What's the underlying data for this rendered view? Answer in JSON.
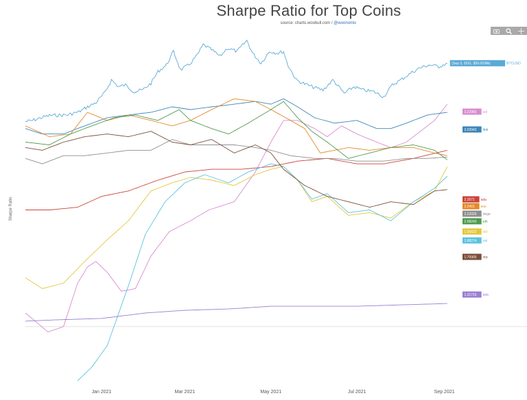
{
  "header": {
    "title": "Sharpe Ratio for Top Coins",
    "source_prefix": "source: charts.woobull.com / ",
    "source_handle": "@woonomic"
  },
  "toolbar": {
    "icons": [
      "camera-icon",
      "zoom-icon",
      "crosshair-icon"
    ]
  },
  "chart_data": {
    "type": "line",
    "title": "Sharpe Ratio for Top Coins",
    "ylabel": "Sharpe Ratio",
    "x_ticks": [
      "Jan 2021",
      "Mar 2021",
      "May 2021",
      "Jul 2021",
      "Sep 2021"
    ],
    "x_range": [
      "2020-11-08",
      "2021-09-25"
    ],
    "ylim": [
      -2.0,
      8.0
    ],
    "zero_line": true,
    "btc_price": {
      "name": "BTCUSD",
      "color": "#5aa9d6",
      "label": "(Sep 3, 2021, $50.0039k)",
      "points": [
        [
          "2020-11-08",
          15.2
        ],
        [
          "2020-11-13",
          15.8
        ],
        [
          "2020-11-19",
          17.5
        ],
        [
          "2020-11-25",
          18.8
        ],
        [
          "2020-12-02",
          19.0
        ],
        [
          "2020-12-08",
          19.2
        ],
        [
          "2020-12-16",
          21.0
        ],
        [
          "2020-12-21",
          23.5
        ],
        [
          "2020-12-28",
          26.5
        ],
        [
          "2021-01-03",
          32
        ],
        [
          "2021-01-08",
          40
        ],
        [
          "2021-01-13",
          36
        ],
        [
          "2021-01-18",
          37
        ],
        [
          "2021-01-24",
          33
        ],
        [
          "2021-01-30",
          34
        ],
        [
          "2021-02-05",
          38
        ],
        [
          "2021-02-10",
          45
        ],
        [
          "2021-02-16",
          49
        ],
        [
          "2021-02-21",
          57
        ],
        [
          "2021-02-26",
          46
        ],
        [
          "2021-03-04",
          49
        ],
        [
          "2021-03-10",
          55
        ],
        [
          "2021-03-14",
          61
        ],
        [
          "2021-03-20",
          58
        ],
        [
          "2021-03-26",
          54
        ],
        [
          "2021-03-31",
          59
        ],
        [
          "2021-04-07",
          57
        ],
        [
          "2021-04-14",
          63.5
        ],
        [
          "2021-04-18",
          56
        ],
        [
          "2021-04-24",
          50
        ],
        [
          "2021-04-30",
          57
        ],
        [
          "2021-05-06",
          56
        ],
        [
          "2021-05-10",
          57
        ],
        [
          "2021-05-13",
          49
        ],
        [
          "2021-05-19",
          40
        ],
        [
          "2021-05-24",
          38
        ],
        [
          "2021-05-30",
          36
        ],
        [
          "2021-06-07",
          34
        ],
        [
          "2021-06-14",
          40
        ],
        [
          "2021-06-22",
          32
        ],
        [
          "2021-06-29",
          36
        ],
        [
          "2021-07-05",
          34
        ],
        [
          "2021-07-13",
          33
        ],
        [
          "2021-07-20",
          30
        ],
        [
          "2021-07-26",
          37
        ],
        [
          "2021-08-01",
          40
        ],
        [
          "2021-08-08",
          44
        ],
        [
          "2021-08-14",
          47
        ],
        [
          "2021-08-21",
          49
        ],
        [
          "2021-08-28",
          48
        ],
        [
          "2021-09-03",
          50.0
        ]
      ]
    },
    "series": [
      {
        "name": "sol",
        "label": "3.22955",
        "color": "#d98bd0",
        "points": [
          [
            "2020-11-08",
            0.5
          ],
          [
            "2020-11-15",
            0.2
          ],
          [
            "2020-11-24",
            -0.2
          ],
          [
            "2020-12-05",
            0.0
          ],
          [
            "2020-12-15",
            1.6
          ],
          [
            "2020-12-22",
            2.2
          ],
          [
            "2020-12-28",
            2.4
          ],
          [
            "2021-01-05",
            2.0
          ],
          [
            "2021-01-15",
            1.3
          ],
          [
            "2021-01-25",
            1.4
          ],
          [
            "2021-02-05",
            2.6
          ],
          [
            "2021-02-18",
            3.5
          ],
          [
            "2021-03-05",
            3.9
          ],
          [
            "2021-03-18",
            4.3
          ],
          [
            "2021-04-05",
            4.6
          ],
          [
            "2021-04-20",
            5.7
          ],
          [
            "2021-05-01",
            6.8
          ],
          [
            "2021-05-10",
            7.6
          ],
          [
            "2021-05-20",
            7.6
          ],
          [
            "2021-06-01",
            7.3
          ],
          [
            "2021-06-10",
            7.0
          ],
          [
            "2021-06-20",
            7.4
          ],
          [
            "2021-07-01",
            7.1
          ],
          [
            "2021-07-15",
            6.8
          ],
          [
            "2021-07-25",
            6.6
          ],
          [
            "2021-08-05",
            6.8
          ],
          [
            "2021-08-15",
            7.2
          ],
          [
            "2021-08-25",
            7.6
          ],
          [
            "2021-09-03",
            8.2
          ]
        ]
      },
      {
        "name": "link",
        "label": "3.03942",
        "color": "#3c86b8",
        "points": [
          [
            "2020-11-08",
            7.3
          ],
          [
            "2020-11-20",
            7.1
          ],
          [
            "2020-12-05",
            7.1
          ],
          [
            "2020-12-20",
            7.4
          ],
          [
            "2021-01-05",
            7.7
          ],
          [
            "2021-01-20",
            7.8
          ],
          [
            "2021-02-05",
            7.9
          ],
          [
            "2021-02-20",
            8.1
          ],
          [
            "2021-03-05",
            8.0
          ],
          [
            "2021-03-20",
            8.1
          ],
          [
            "2021-04-05",
            8.2
          ],
          [
            "2021-04-20",
            8.3
          ],
          [
            "2021-05-01",
            8.2
          ],
          [
            "2021-05-10",
            8.4
          ],
          [
            "2021-05-20",
            8.1
          ],
          [
            "2021-06-01",
            7.7
          ],
          [
            "2021-06-15",
            7.5
          ],
          [
            "2021-07-01",
            7.6
          ],
          [
            "2021-07-15",
            7.3
          ],
          [
            "2021-07-25",
            7.3
          ],
          [
            "2021-08-05",
            7.5
          ],
          [
            "2021-08-20",
            7.8
          ],
          [
            "2021-09-03",
            7.9
          ]
        ]
      },
      {
        "name": "ada",
        "label": "2.2571",
        "color": "#c9443a",
        "points": [
          [
            "2020-11-08",
            4.3
          ],
          [
            "2020-11-25",
            4.3
          ],
          [
            "2020-12-15",
            4.4
          ],
          [
            "2021-01-01",
            4.8
          ],
          [
            "2021-01-20",
            5.0
          ],
          [
            "2021-02-10",
            5.4
          ],
          [
            "2021-03-01",
            5.7
          ],
          [
            "2021-03-20",
            5.8
          ],
          [
            "2021-04-10",
            5.8
          ],
          [
            "2021-05-01",
            5.9
          ],
          [
            "2021-05-20",
            6.1
          ],
          [
            "2021-06-10",
            6.2
          ],
          [
            "2021-07-01",
            6.0
          ],
          [
            "2021-07-20",
            6.0
          ],
          [
            "2021-08-10",
            6.2
          ],
          [
            "2021-09-03",
            6.5
          ]
        ]
      },
      {
        "name": "eos",
        "label": "2.2401",
        "color": "#e38a2a",
        "points": [
          [
            "2020-11-08",
            7.4
          ],
          [
            "2020-11-25",
            7.0
          ],
          [
            "2020-12-10",
            7.1
          ],
          [
            "2020-12-22",
            7.9
          ],
          [
            "2021-01-05",
            7.6
          ],
          [
            "2021-01-20",
            7.8
          ],
          [
            "2021-02-05",
            7.6
          ],
          [
            "2021-02-20",
            7.4
          ],
          [
            "2021-03-05",
            7.6
          ],
          [
            "2021-03-20",
            8.0
          ],
          [
            "2021-04-05",
            8.4
          ],
          [
            "2021-04-20",
            8.3
          ],
          [
            "2021-05-01",
            8.0
          ],
          [
            "2021-05-15",
            7.6
          ],
          [
            "2021-05-25",
            7.3
          ],
          [
            "2021-06-05",
            6.4
          ],
          [
            "2021-06-15",
            6.5
          ],
          [
            "2021-06-25",
            6.6
          ],
          [
            "2021-07-10",
            6.5
          ],
          [
            "2021-07-25",
            6.6
          ],
          [
            "2021-08-10",
            6.6
          ],
          [
            "2021-08-25",
            6.4
          ],
          [
            "2021-09-03",
            6.3
          ]
        ]
      },
      {
        "name": "doge",
        "label": "2.22026",
        "color": "#8e8e8e",
        "points": [
          [
            "2020-11-08",
            6.2
          ],
          [
            "2020-11-20",
            6.0
          ],
          [
            "2020-12-05",
            6.3
          ],
          [
            "2020-12-20",
            6.3
          ],
          [
            "2021-01-05",
            6.4
          ],
          [
            "2021-01-20",
            6.5
          ],
          [
            "2021-02-05",
            6.5
          ],
          [
            "2021-02-20",
            6.9
          ],
          [
            "2021-03-05",
            6.7
          ],
          [
            "2021-03-20",
            6.7
          ],
          [
            "2021-04-05",
            6.7
          ],
          [
            "2021-04-20",
            6.6
          ],
          [
            "2021-05-01",
            6.5
          ],
          [
            "2021-05-15",
            6.3
          ],
          [
            "2021-06-01",
            6.2
          ],
          [
            "2021-06-15",
            6.2
          ],
          [
            "2021-07-01",
            6.1
          ],
          [
            "2021-07-20",
            6.1
          ],
          [
            "2021-08-05",
            6.2
          ],
          [
            "2021-08-20",
            6.2
          ],
          [
            "2021-09-03",
            6.25
          ]
        ]
      },
      {
        "name": "eth",
        "label": "2.08243",
        "color": "#4e9a4e",
        "points": [
          [
            "2020-11-08",
            6.8
          ],
          [
            "2020-11-25",
            6.7
          ],
          [
            "2020-12-10",
            7.1
          ],
          [
            "2020-12-25",
            7.4
          ],
          [
            "2021-01-10",
            7.7
          ],
          [
            "2021-01-25",
            7.8
          ],
          [
            "2021-02-10",
            7.6
          ],
          [
            "2021-02-25",
            8.0
          ],
          [
            "2021-03-05",
            7.6
          ],
          [
            "2021-03-20",
            7.3
          ],
          [
            "2021-04-01",
            7.1
          ],
          [
            "2021-04-15",
            7.5
          ],
          [
            "2021-05-01",
            8.0
          ],
          [
            "2021-05-10",
            8.3
          ],
          [
            "2021-05-20",
            7.7
          ],
          [
            "2021-05-30",
            7.2
          ],
          [
            "2021-06-10",
            6.8
          ],
          [
            "2021-06-25",
            6.2
          ],
          [
            "2021-07-10",
            6.4
          ],
          [
            "2021-07-25",
            6.6
          ],
          [
            "2021-08-10",
            6.7
          ],
          [
            "2021-08-25",
            6.5
          ],
          [
            "2021-09-03",
            6.15
          ]
        ]
      },
      {
        "name": "dot",
        "label": "1.96622",
        "color": "#e3c73a",
        "points": [
          [
            "2020-11-08",
            1.8
          ],
          [
            "2020-11-20",
            1.4
          ],
          [
            "2020-12-05",
            1.6
          ],
          [
            "2020-12-20",
            2.4
          ],
          [
            "2021-01-05",
            3.2
          ],
          [
            "2021-01-20",
            3.9
          ],
          [
            "2021-02-05",
            5.0
          ],
          [
            "2021-02-20",
            5.3
          ],
          [
            "2021-03-05",
            5.5
          ],
          [
            "2021-03-20",
            5.4
          ],
          [
            "2021-04-05",
            5.2
          ],
          [
            "2021-04-20",
            5.6
          ],
          [
            "2021-05-01",
            5.8
          ],
          [
            "2021-05-10",
            5.9
          ],
          [
            "2021-05-20",
            5.4
          ],
          [
            "2021-05-30",
            4.6
          ],
          [
            "2021-06-10",
            4.8
          ],
          [
            "2021-06-25",
            4.1
          ],
          [
            "2021-07-10",
            4.2
          ],
          [
            "2021-07-25",
            4.0
          ],
          [
            "2021-08-10",
            4.6
          ],
          [
            "2021-08-25",
            5.0
          ],
          [
            "2021-09-03",
            5.9
          ]
        ]
      },
      {
        "name": "uni",
        "label": "1.88274",
        "color": "#5bc2e0",
        "points": [
          [
            "2020-12-15",
            -2.0
          ],
          [
            "2020-12-25",
            -1.5
          ],
          [
            "2021-01-05",
            -0.7
          ],
          [
            "2021-01-20",
            1.5
          ],
          [
            "2021-02-01",
            3.4
          ],
          [
            "2021-02-15",
            4.6
          ],
          [
            "2021-03-01",
            5.3
          ],
          [
            "2021-03-15",
            5.6
          ],
          [
            "2021-04-01",
            5.3
          ],
          [
            "2021-04-15",
            5.7
          ],
          [
            "2021-05-01",
            6.0
          ],
          [
            "2021-05-10",
            5.9
          ],
          [
            "2021-05-20",
            5.4
          ],
          [
            "2021-05-30",
            4.7
          ],
          [
            "2021-06-10",
            4.9
          ],
          [
            "2021-06-25",
            4.2
          ],
          [
            "2021-07-10",
            4.3
          ],
          [
            "2021-07-25",
            3.9
          ],
          [
            "2021-08-10",
            4.6
          ],
          [
            "2021-08-25",
            5.1
          ],
          [
            "2021-09-03",
            5.55
          ]
        ]
      },
      {
        "name": "xrp",
        "label": "1.70905",
        "color": "#7a4e38",
        "points": [
          [
            "2020-11-08",
            6.6
          ],
          [
            "2020-11-20",
            6.5
          ],
          [
            "2020-12-05",
            6.8
          ],
          [
            "2020-12-20",
            7.0
          ],
          [
            "2021-01-05",
            7.1
          ],
          [
            "2021-01-20",
            7.0
          ],
          [
            "2021-02-05",
            7.2
          ],
          [
            "2021-02-20",
            6.8
          ],
          [
            "2021-03-05",
            6.7
          ],
          [
            "2021-03-20",
            6.9
          ],
          [
            "2021-04-05",
            6.4
          ],
          [
            "2021-04-20",
            6.7
          ],
          [
            "2021-05-01",
            6.4
          ],
          [
            "2021-05-10",
            5.8
          ],
          [
            "2021-05-25",
            5.2
          ],
          [
            "2021-06-10",
            4.8
          ],
          [
            "2021-06-25",
            4.6
          ],
          [
            "2021-07-10",
            4.4
          ],
          [
            "2021-07-25",
            4.6
          ],
          [
            "2021-08-10",
            4.5
          ],
          [
            "2021-08-25",
            5.0
          ],
          [
            "2021-09-03",
            5.05
          ]
        ]
      },
      {
        "name": "bnb",
        "label": "1.31715",
        "color": "#9b7fd1",
        "points": [
          [
            "2020-11-08",
            0.2
          ],
          [
            "2020-12-01",
            0.25
          ],
          [
            "2021-01-01",
            0.3
          ],
          [
            "2021-02-01",
            0.5
          ],
          [
            "2021-03-01",
            0.6
          ],
          [
            "2021-04-01",
            0.65
          ],
          [
            "2021-05-01",
            0.75
          ],
          [
            "2021-06-01",
            0.75
          ],
          [
            "2021-07-01",
            0.75
          ],
          [
            "2021-08-01",
            0.8
          ],
          [
            "2021-09-03",
            0.85
          ]
        ]
      }
    ]
  }
}
